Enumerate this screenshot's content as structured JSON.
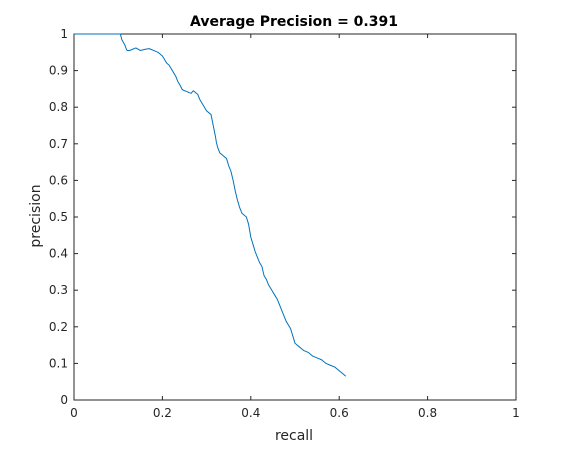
{
  "chart_data": {
    "type": "line",
    "title": "Average Precision = 0.391",
    "xlabel": "recall",
    "ylabel": "precision",
    "xlim": [
      0,
      1
    ],
    "ylim": [
      0,
      1
    ],
    "xticks": [
      "0",
      "0.2",
      "0.4",
      "0.6",
      "0.8",
      "1"
    ],
    "yticks": [
      "0",
      "0.1",
      "0.2",
      "0.3",
      "0.4",
      "0.5",
      "0.6",
      "0.7",
      "0.8",
      "0.9",
      "1"
    ],
    "grid": true,
    "line_color": "#0072bd",
    "series": [
      {
        "x": [
          0.0,
          0.105,
          0.108,
          0.115,
          0.118,
          0.12,
          0.125,
          0.13,
          0.14,
          0.15,
          0.16,
          0.17,
          0.18,
          0.19,
          0.2,
          0.21,
          0.215,
          0.22,
          0.225,
          0.23,
          0.235,
          0.24,
          0.245,
          0.25,
          0.255,
          0.26,
          0.265,
          0.27,
          0.28,
          0.285,
          0.29,
          0.3,
          0.305,
          0.31,
          0.315,
          0.32,
          0.322,
          0.325,
          0.33,
          0.335,
          0.34,
          0.345,
          0.35,
          0.355,
          0.36,
          0.365,
          0.37,
          0.375,
          0.38,
          0.385,
          0.39,
          0.395,
          0.4,
          0.405,
          0.41,
          0.415,
          0.42,
          0.425,
          0.43,
          0.435,
          0.44,
          0.445,
          0.45,
          0.455,
          0.46,
          0.465,
          0.47,
          0.475,
          0.48,
          0.485,
          0.49,
          0.495,
          0.5,
          0.505,
          0.51,
          0.515,
          0.52,
          0.53,
          0.54,
          0.55,
          0.56,
          0.57,
          0.58,
          0.59,
          0.6,
          0.605,
          0.61,
          0.615
        ],
        "y": [
          1.0,
          1.0,
          0.985,
          0.97,
          0.96,
          0.955,
          0.955,
          0.957,
          0.962,
          0.955,
          0.958,
          0.96,
          0.955,
          0.95,
          0.94,
          0.92,
          0.915,
          0.905,
          0.895,
          0.885,
          0.87,
          0.86,
          0.848,
          0.845,
          0.843,
          0.84,
          0.838,
          0.845,
          0.835,
          0.82,
          0.81,
          0.79,
          0.785,
          0.78,
          0.75,
          0.72,
          0.705,
          0.69,
          0.675,
          0.67,
          0.665,
          0.66,
          0.64,
          0.625,
          0.6,
          0.57,
          0.545,
          0.525,
          0.51,
          0.505,
          0.5,
          0.48,
          0.445,
          0.425,
          0.405,
          0.39,
          0.375,
          0.365,
          0.34,
          0.33,
          0.315,
          0.305,
          0.295,
          0.285,
          0.275,
          0.26,
          0.245,
          0.23,
          0.215,
          0.205,
          0.195,
          0.175,
          0.155,
          0.15,
          0.145,
          0.14,
          0.135,
          0.13,
          0.12,
          0.115,
          0.11,
          0.1,
          0.095,
          0.09,
          0.08,
          0.075,
          0.07,
          0.065
        ]
      }
    ]
  }
}
